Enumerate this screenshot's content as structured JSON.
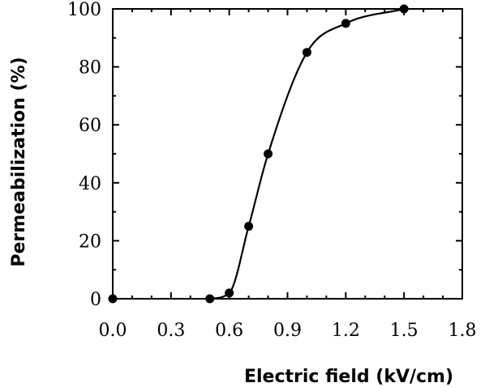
{
  "chart_data": {
    "type": "line",
    "title": "",
    "xlabel": "Electric field (kV/cm)",
    "ylabel": "Permeabilization (%)",
    "xlim": [
      0.0,
      1.8
    ],
    "ylim": [
      0,
      100
    ],
    "x_ticks": [
      "0.0",
      "0.3",
      "0.6",
      "0.9",
      "1.2",
      "1.5",
      "1.8"
    ],
    "y_ticks": [
      "0",
      "20",
      "40",
      "60",
      "80",
      "100"
    ],
    "grid": false,
    "legend": "none",
    "colors": {
      "marker": "#000000",
      "line": "#000000",
      "axis": "#000000"
    },
    "series": [
      {
        "x": [
          0.0,
          0.5,
          0.6,
          0.7,
          0.8,
          1.0,
          1.2,
          1.5
        ],
        "y": [
          0,
          0,
          2,
          25,
          50,
          85,
          95,
          100
        ]
      }
    ]
  }
}
